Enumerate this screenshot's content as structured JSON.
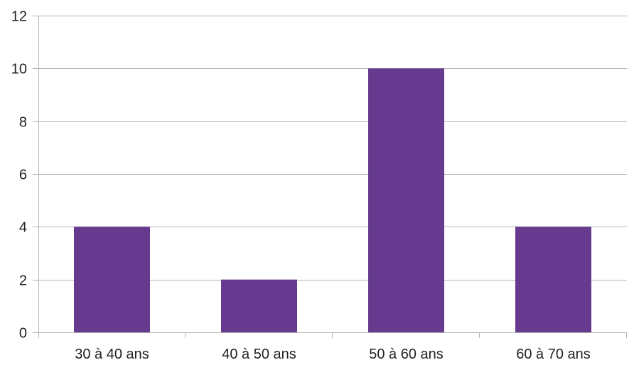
{
  "chart_data": {
    "type": "bar",
    "title": "",
    "xlabel": "",
    "ylabel": "",
    "categories": [
      "30 à 40 ans",
      "40 à 50 ans",
      "50 à 60 ans",
      "60 à 70 ans"
    ],
    "values": [
      4,
      2,
      10,
      4
    ],
    "ylim": [
      0,
      12
    ],
    "yticks": [
      0,
      2,
      4,
      6,
      8,
      10,
      12
    ],
    "ytick_labels": [
      "0",
      "2",
      "4",
      "6",
      "8",
      "10",
      "12"
    ],
    "grid": true,
    "legend": "none",
    "colors": {
      "bar": "#663a8e",
      "grid": "#b3b3b3",
      "axis": "#b3b3b3",
      "text": "#222222"
    }
  }
}
